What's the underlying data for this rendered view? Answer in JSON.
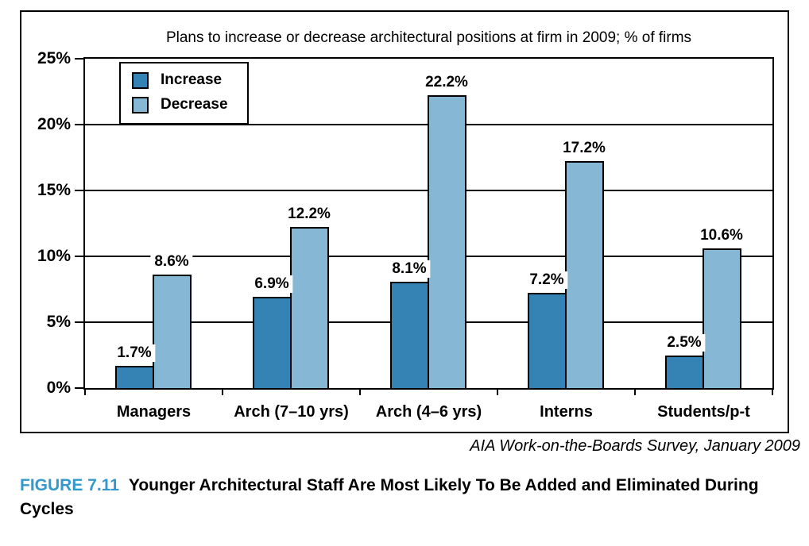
{
  "chart_data": {
    "type": "bar",
    "title": "Plans to increase or decrease architectural positions at firm in 2009; % of firms",
    "categories": [
      "Managers",
      "Arch (7–10 yrs)",
      "Arch (4–6 yrs)",
      "Interns",
      "Students/p-t"
    ],
    "series": [
      {
        "name": "Increase",
        "color": "#3583B4",
        "values": [
          1.7,
          6.9,
          8.1,
          7.2,
          2.5
        ]
      },
      {
        "name": "Decrease",
        "color": "#86B7D4",
        "values": [
          8.6,
          12.2,
          22.2,
          17.2,
          10.6
        ]
      }
    ],
    "value_labels": {
      "Increase": [
        "1.7%",
        "6.9%",
        "8.1%",
        "7.2%",
        "2.5%"
      ],
      "Decrease": [
        "8.6%",
        "12.2%",
        "22.2%",
        "17.2%",
        "10.6%"
      ]
    },
    "y_ticks": [
      "25%",
      "20%",
      "15%",
      "10%",
      "5%",
      "0%"
    ],
    "ylim": [
      0,
      25
    ],
    "grid": true,
    "legend_position": "top-left",
    "xlabel": "",
    "ylabel": ""
  },
  "source": "AIA Work-on-the-Boards Survey, January 2009",
  "caption": {
    "number": "FIGURE 7.11",
    "title": "Younger Architectural Staff Are Most Likely To Be Added and Eliminated During Cycles",
    "accent_color": "#3399CC"
  }
}
